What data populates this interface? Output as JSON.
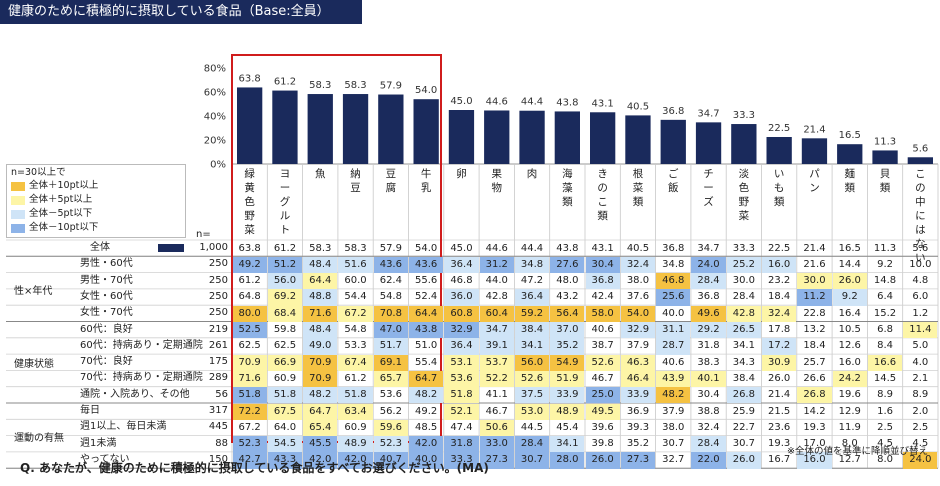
{
  "title": "健康のために積極的に摂取している食品（Base:全員）",
  "question": "Q. あなたが、健康のために積極的に摂取している食品をすべてお選びください。(MA)",
  "footnote": "※全体の値を基準に降順並び替え",
  "n_header": "n=",
  "legend": {
    "title": "n=30以上で",
    "items": [
      {
        "label": "全体＋10pt以上",
        "color": "#f5c242"
      },
      {
        "label": "全体＋5pt以上",
        "color": "#fdf5a6"
      },
      {
        "label": "全体－5pt以下",
        "color": "#cfe4f7"
      },
      {
        "label": "全体－10pt以下",
        "color": "#8db3e8"
      }
    ]
  },
  "colors": {
    "bar": "#1a2a5c",
    "highlight": "#d01c1c",
    "plus10": "#f5c242",
    "plus5": "#fdf5a6",
    "minus5": "#cfe4f7",
    "minus10": "#8db3e8"
  },
  "chart_data": {
    "type": "bar",
    "title": "健康のために積極的に摂取している食品（Base:全員）",
    "ylim": [
      0,
      80
    ],
    "yticks": [
      "0%",
      "20%",
      "40%",
      "60%",
      "80%"
    ],
    "categories": [
      "緑黄色野菜",
      "ヨーグルト",
      "魚",
      "納豆",
      "豆腐",
      "牛乳",
      "卵",
      "果物",
      "肉",
      "海藻類",
      "きのこ類",
      "根菜類",
      "ご飯",
      "チーズ",
      "淡色野菜",
      "いも類",
      "パン",
      "麺類",
      "貝類",
      "この中にはない"
    ],
    "category_display": [
      "緑\n黄\n色\n野\n菜",
      "ヨ\nー\nグ\nル\nト",
      "魚",
      "納\n豆",
      "豆\n腐",
      "牛\n乳",
      "卵",
      "果\n物",
      "肉",
      "海\n藻\n類",
      "き\nの\nこ\n類",
      "根\n菜\n類",
      "ご\n飯",
      "チ\nー\nズ",
      "淡\n色\n野\n菜",
      "い\nも\n類",
      "パ\nン",
      "麺\n類",
      "貝\n類",
      "こ\nの\n中\nに\nは\nな\nい"
    ],
    "values": [
      63.8,
      61.2,
      58.3,
      58.3,
      57.9,
      54.0,
      45.0,
      44.6,
      44.4,
      43.8,
      43.1,
      40.5,
      36.8,
      34.7,
      33.3,
      22.5,
      21.4,
      16.5,
      11.3,
      5.6
    ]
  },
  "table": {
    "rows": [
      {
        "group": "",
        "label": "全体",
        "n": "1,000",
        "values": [
          "63.8",
          "61.2",
          "58.3",
          "58.3",
          "57.9",
          "54.0",
          "45.0",
          "44.6",
          "44.4",
          "43.8",
          "43.1",
          "40.5",
          "36.8",
          "34.7",
          "33.3",
          "22.5",
          "21.4",
          "16.5",
          "11.3",
          "5.6"
        ],
        "colors": [
          "",
          "",
          "",
          "",
          "",
          "",
          "",
          "",
          "",
          "",
          "",
          "",
          "",
          "",
          "",
          "",
          "",
          "",
          "",
          ""
        ]
      },
      {
        "group": "性×年代",
        "label": "男性・60代",
        "n": "250",
        "values": [
          "49.2",
          "51.2",
          "48.4",
          "51.6",
          "43.6",
          "43.6",
          "36.4",
          "31.2",
          "34.8",
          "27.6",
          "30.4",
          "32.4",
          "34.8",
          "24.0",
          "25.2",
          "16.0",
          "21.6",
          "14.4",
          "9.2",
          "10.0"
        ],
        "colors": [
          "m10",
          "m10",
          "m5",
          "m5",
          "m10",
          "m10",
          "m5",
          "m10",
          "m5",
          "m10",
          "m10",
          "m5",
          "",
          "m10",
          "m5",
          "m5",
          "",
          "",
          "",
          ""
        ]
      },
      {
        "group": "性×年代",
        "label": "男性・70代",
        "n": "250",
        "values": [
          "61.2",
          "56.0",
          "64.4",
          "60.0",
          "62.4",
          "55.6",
          "46.8",
          "44.0",
          "47.2",
          "48.0",
          "36.8",
          "38.0",
          "46.8",
          "28.4",
          "30.0",
          "23.2",
          "30.0",
          "26.0",
          "14.8",
          "4.8"
        ],
        "colors": [
          "",
          "m5",
          "p5",
          "",
          "",
          "",
          "",
          "",
          "",
          "",
          "m5",
          "",
          "p10",
          "m5",
          "",
          "",
          "p5",
          "p5",
          "",
          ""
        ]
      },
      {
        "group": "性×年代",
        "label": "女性・60代",
        "n": "250",
        "values": [
          "64.8",
          "69.2",
          "48.8",
          "54.4",
          "54.8",
          "52.4",
          "36.0",
          "42.8",
          "36.4",
          "43.2",
          "42.4",
          "37.6",
          "25.6",
          "36.8",
          "28.4",
          "18.4",
          "11.2",
          "9.2",
          "6.4",
          "6.0"
        ],
        "colors": [
          "",
          "p5",
          "m5",
          "",
          "",
          "",
          "m5",
          "",
          "m5",
          "",
          "",
          "",
          "m10",
          "",
          "",
          "",
          "m10",
          "m5",
          "",
          ""
        ]
      },
      {
        "group": "性×年代",
        "label": "女性・70代",
        "n": "250",
        "values": [
          "80.0",
          "68.4",
          "71.6",
          "67.2",
          "70.8",
          "64.4",
          "60.8",
          "60.4",
          "59.2",
          "56.4",
          "58.0",
          "54.0",
          "40.0",
          "49.6",
          "42.8",
          "32.4",
          "22.8",
          "16.4",
          "15.2",
          "1.2"
        ],
        "colors": [
          "p10",
          "p5",
          "p10",
          "p5",
          "p10",
          "p10",
          "p10",
          "p10",
          "p10",
          "p10",
          "p10",
          "p10",
          "",
          "p10",
          "p5",
          "p5",
          "",
          "",
          "",
          ""
        ]
      },
      {
        "group": "健康状態",
        "label": "60代：良好",
        "n": "219",
        "values": [
          "52.5",
          "59.8",
          "48.4",
          "54.8",
          "47.0",
          "43.8",
          "32.9",
          "34.7",
          "38.4",
          "37.0",
          "40.6",
          "32.9",
          "31.1",
          "29.2",
          "26.5",
          "17.8",
          "13.2",
          "10.5",
          "6.8",
          "11.4"
        ],
        "colors": [
          "m10",
          "",
          "m5",
          "",
          "m10",
          "m10",
          "m10",
          "m5",
          "m5",
          "m5",
          "",
          "m5",
          "m5",
          "m5",
          "m5",
          "",
          "",
          "",
          "",
          "p5"
        ]
      },
      {
        "group": "健康状態",
        "label": "60代：持病あり・定期通院",
        "n": "261",
        "values": [
          "62.5",
          "62.5",
          "49.0",
          "53.3",
          "51.7",
          "51.0",
          "36.4",
          "39.1",
          "34.1",
          "35.2",
          "38.7",
          "37.9",
          "28.7",
          "31.8",
          "34.1",
          "17.2",
          "18.4",
          "12.6",
          "8.4",
          "5.0"
        ],
        "colors": [
          "",
          "",
          "m5",
          "",
          "m5",
          "",
          "m5",
          "m5",
          "m5",
          "m5",
          "",
          "",
          "m5",
          "",
          "",
          "m5",
          "",
          "",
          "",
          ""
        ]
      },
      {
        "group": "健康状態",
        "label": "70代：良好",
        "n": "175",
        "values": [
          "70.9",
          "66.9",
          "70.9",
          "67.4",
          "69.1",
          "55.4",
          "53.1",
          "53.7",
          "56.0",
          "54.9",
          "52.6",
          "46.3",
          "40.6",
          "38.3",
          "34.3",
          "30.9",
          "25.7",
          "16.0",
          "16.6",
          "4.0"
        ],
        "colors": [
          "p5",
          "p5",
          "p10",
          "p5",
          "p10",
          "",
          "p5",
          "p5",
          "p10",
          "p10",
          "p5",
          "p5",
          "",
          "",
          "",
          "p5",
          "",
          "",
          "p5",
          ""
        ]
      },
      {
        "group": "健康状態",
        "label": "70代：持病あり・定期通院",
        "n": "289",
        "values": [
          "71.6",
          "60.9",
          "70.9",
          "61.2",
          "65.7",
          "64.7",
          "53.6",
          "52.2",
          "52.6",
          "51.9",
          "46.7",
          "46.4",
          "43.9",
          "40.1",
          "38.4",
          "26.0",
          "26.6",
          "24.2",
          "14.5",
          "2.1"
        ],
        "colors": [
          "p5",
          "",
          "p10",
          "",
          "p5",
          "p10",
          "p5",
          "p5",
          "p5",
          "p5",
          "",
          "p5",
          "p5",
          "p5",
          "",
          "",
          "",
          "p5",
          "",
          ""
        ]
      },
      {
        "group": "健康状態",
        "label": "通院・入院あり、その他",
        "n": "56",
        "values": [
          "51.8",
          "51.8",
          "48.2",
          "51.8",
          "53.6",
          "48.2",
          "51.8",
          "41.1",
          "37.5",
          "33.9",
          "25.0",
          "33.9",
          "48.2",
          "30.4",
          "26.8",
          "21.4",
          "26.8",
          "19.6",
          "8.9",
          "8.9"
        ],
        "colors": [
          "m10",
          "m5",
          "m5",
          "m5",
          "",
          "m5",
          "p5",
          "",
          "m5",
          "m5",
          "m10",
          "m5",
          "p10",
          "",
          "m5",
          "",
          "p5",
          "",
          "",
          ""
        ]
      },
      {
        "group": "運動の有無",
        "label": "毎日",
        "n": "317",
        "values": [
          "72.2",
          "67.5",
          "64.7",
          "63.4",
          "56.2",
          "49.2",
          "52.1",
          "46.7",
          "53.0",
          "48.9",
          "49.5",
          "36.9",
          "37.9",
          "38.8",
          "25.9",
          "21.5",
          "14.2",
          "12.9",
          "1.6",
          "2.0"
        ],
        "colors": [
          "p10",
          "p5",
          "p5",
          "p5",
          "",
          "",
          "p5",
          "",
          "p5",
          "p5",
          "p5",
          "",
          "",
          "",
          "",
          "",
          "",
          "",
          "",
          ""
        ]
      },
      {
        "group": "運動の有無",
        "label": "週1以上、毎日未満",
        "n": "445",
        "values": [
          "67.2",
          "64.0",
          "65.4",
          "60.9",
          "59.6",
          "48.5",
          "47.4",
          "50.6",
          "44.5",
          "45.4",
          "39.6",
          "39.3",
          "38.0",
          "32.4",
          "22.7",
          "23.6",
          "19.3",
          "11.9",
          "2.5",
          "2.5"
        ],
        "colors": [
          "",
          "",
          "p5",
          "",
          "p5",
          "",
          "",
          "p5",
          "",
          "",
          "",
          "",
          "",
          "",
          "",
          "",
          "",
          "",
          "",
          ""
        ]
      },
      {
        "group": "運動の有無",
        "label": "週1未満",
        "n": "88",
        "values": [
          "52.3",
          "54.5",
          "45.5",
          "48.9",
          "52.3",
          "42.0",
          "31.8",
          "33.0",
          "28.4",
          "34.1",
          "39.8",
          "35.2",
          "30.7",
          "28.4",
          "30.7",
          "19.3",
          "17.0",
          "8.0",
          "4.5",
          "4.5"
        ],
        "colors": [
          "m10",
          "m5",
          "m10",
          "m5",
          "m5",
          "m10",
          "m10",
          "m10",
          "m10",
          "m5",
          "",
          "",
          "",
          "m5",
          "",
          "",
          "",
          "",
          "",
          ""
        ]
      },
      {
        "group": "運動の有無",
        "label": "やってない",
        "n": "150",
        "values": [
          "42.7",
          "43.3",
          "42.0",
          "42.0",
          "40.7",
          "40.0",
          "33.3",
          "27.3",
          "30.7",
          "28.0",
          "26.0",
          "27.3",
          "32.7",
          "22.0",
          "26.0",
          "16.7",
          "16.0",
          "12.7",
          "8.0",
          "24.0"
        ],
        "colors": [
          "m10",
          "m10",
          "m10",
          "m10",
          "m10",
          "m10",
          "m10",
          "m10",
          "m10",
          "m10",
          "m10",
          "m10",
          "",
          "m10",
          "m5",
          "",
          "m5",
          "",
          "",
          "p10"
        ]
      }
    ],
    "groups": [
      "性×年代",
      "健康状態",
      "運動の有無"
    ]
  }
}
